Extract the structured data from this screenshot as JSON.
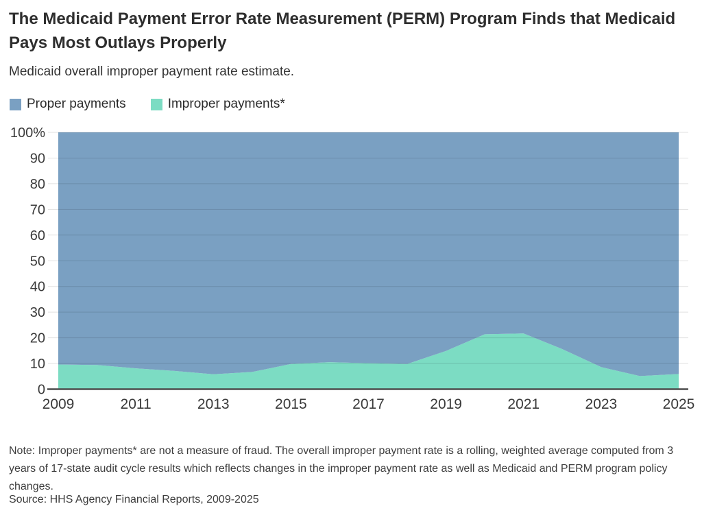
{
  "header": {
    "title": "The Medicaid Payment Error Rate Measurement (PERM) Program Finds that Medicaid Pays Most Outlays Properly",
    "subtitle": "Medicaid overall improper payment rate estimate."
  },
  "legend": {
    "items": [
      {
        "key": "proper",
        "label": "Proper payments",
        "color": "#7aa0c2"
      },
      {
        "key": "improper",
        "label": "Improper payments*",
        "color": "#7cdcc3"
      }
    ]
  },
  "chart_data": {
    "type": "area",
    "stacked": true,
    "title": "Medicaid overall improper payment rate estimate.",
    "xlabel": "",
    "ylabel": "",
    "unit": "percent",
    "ylim": [
      0,
      100
    ],
    "grid": true,
    "legend_position": "top",
    "x": [
      2009,
      2010,
      2011,
      2012,
      2013,
      2014,
      2015,
      2016,
      2017,
      2018,
      2019,
      2020,
      2021,
      2022,
      2023,
      2024,
      2025
    ],
    "series": [
      {
        "key": "improper",
        "name": "Improper payments*",
        "color": "#7cdcc3",
        "values": [
          9.6,
          9.4,
          8.1,
          7.1,
          5.8,
          6.7,
          9.8,
          10.5,
          10.1,
          9.8,
          14.9,
          21.4,
          21.7,
          15.6,
          8.6,
          5.1,
          5.9
        ]
      },
      {
        "key": "proper",
        "name": "Proper payments",
        "color": "#7aa0c2",
        "values": [
          90.4,
          90.6,
          91.9,
          92.9,
          94.2,
          93.3,
          90.2,
          89.5,
          89.9,
          90.2,
          85.1,
          78.6,
          78.3,
          84.4,
          91.4,
          94.9,
          94.1
        ]
      }
    ],
    "y_ticks": [
      {
        "value": 0,
        "label": "0"
      },
      {
        "value": 10,
        "label": "10"
      },
      {
        "value": 20,
        "label": "20"
      },
      {
        "value": 30,
        "label": "30"
      },
      {
        "value": 40,
        "label": "40"
      },
      {
        "value": 50,
        "label": "50"
      },
      {
        "value": 60,
        "label": "60"
      },
      {
        "value": 70,
        "label": "70"
      },
      {
        "value": 80,
        "label": "80"
      },
      {
        "value": 90,
        "label": "90"
      },
      {
        "value": 100,
        "label": "100%"
      }
    ],
    "x_ticks": [
      {
        "value": 2009,
        "label": "2009"
      },
      {
        "value": 2011,
        "label": "2011"
      },
      {
        "value": 2013,
        "label": "2013"
      },
      {
        "value": 2015,
        "label": "2015"
      },
      {
        "value": 2017,
        "label": "2017"
      },
      {
        "value": 2019,
        "label": "2019"
      },
      {
        "value": 2021,
        "label": "2021"
      },
      {
        "value": 2023,
        "label": "2023"
      },
      {
        "value": 2025,
        "label": "2025"
      }
    ]
  },
  "footer": {
    "note": "Note: Improper payments* are not a measure of fraud. The overall improper payment rate is a rolling, weighted average computed from 3 years of 17-state audit cycle results which reflects changes in the improper payment rate as well as Medicaid and PERM program policy changes.",
    "source": "Source: HHS Agency Financial Reports, 2009-2025"
  }
}
